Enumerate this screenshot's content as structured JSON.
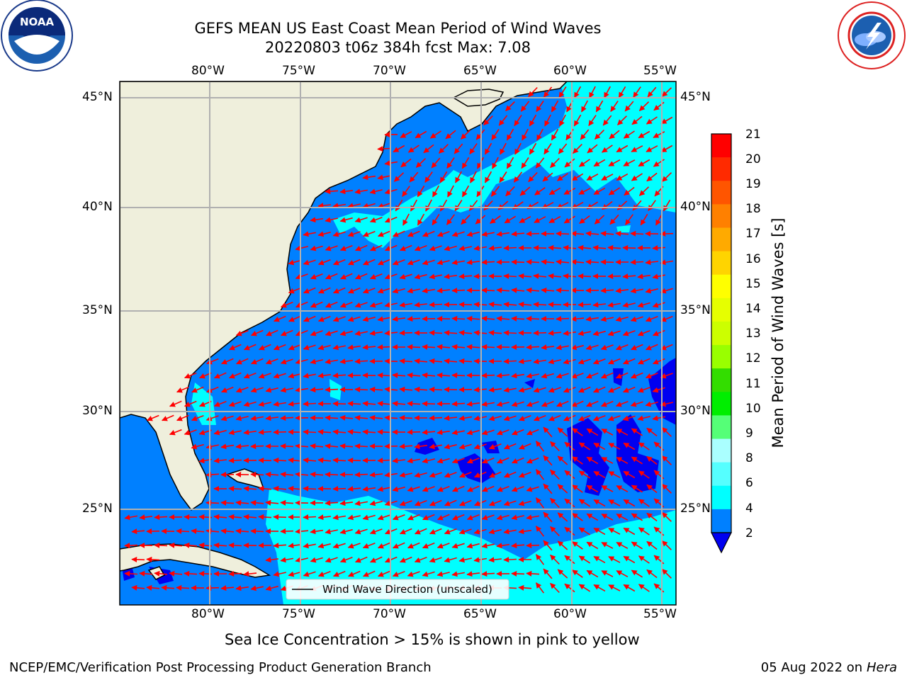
{
  "header": {
    "title_line1": "GEFS MEAN US East Coast Mean Period of Wind Waves",
    "title_line2": "20220803 t06z 384h fcst   Max: 7.08"
  },
  "logos": {
    "left": "NOAA",
    "left_ring_text": "NATIONAL OCEANIC AND ATMOSPHERIC ADMINISTRATION • U.S. DEPARTMENT OF COMMERCE",
    "right_ring_text": "NATIONAL WEATHER SERVICE"
  },
  "map": {
    "lon_ticks": [
      "80°W",
      "75°W",
      "70°W",
      "65°W",
      "60°W",
      "55°W"
    ],
    "lat_ticks": [
      "45°N",
      "40°N",
      "35°N",
      "30°N",
      "25°N"
    ],
    "legend_label": "Wind Wave Direction (unscaled)",
    "colors": {
      "land": "#efefdc",
      "ocean_2_4": "#0080ff",
      "ocean_4_6": "#00ffff",
      "ocean_low": "#0000f0",
      "arrow": "#ff0000",
      "grid": "#b0b0b0"
    }
  },
  "colorbar": {
    "label": "Mean Period of Wind Waves [s]",
    "ticks": [
      "21",
      "20",
      "19",
      "18",
      "17",
      "16",
      "15",
      "14",
      "13",
      "12",
      "11",
      "10",
      "9",
      "8",
      "6",
      "4",
      "2"
    ],
    "colors": [
      "#ff0000",
      "#ff2a00",
      "#ff5500",
      "#ff8000",
      "#ffaa00",
      "#ffd400",
      "#ffff00",
      "#e6ff00",
      "#ccff00",
      "#99ff00",
      "#33dd00",
      "#00ee00",
      "#55ff77",
      "#aaffff",
      "#55ffff",
      "#00ffff",
      "#0080ff"
    ],
    "under_color": "#0000f0"
  },
  "footer": {
    "note": "Sea Ice Concentration > 15% is shown in pink to yellow",
    "left": "NCEP/EMC/Verification Post Processing Product Generation Branch",
    "date": "05 Aug 2022 on",
    "machine": "Hera"
  }
}
